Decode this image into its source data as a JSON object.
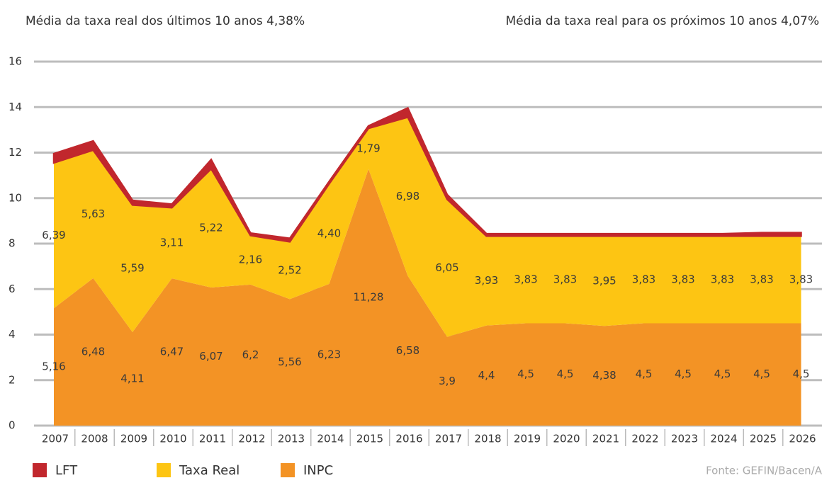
{
  "chart_data": {
    "type": "stacked_area",
    "title": "Média da taxa real dos últimos 10 anos 4,38%",
    "subtitle": "Média da taxa real para os próximos 10 anos 4,07%",
    "source": "Fonte: GEFIN/Bacen/A",
    "categories": [
      "2007",
      "2008",
      "2009",
      "2010",
      "2011",
      "2012",
      "2013",
      "2014",
      "2015",
      "2016",
      "2017",
      "2018",
      "2019",
      "2020",
      "2021",
      "2022",
      "2023",
      "2024",
      "2025",
      "2026"
    ],
    "series": [
      {
        "name": "INPC",
        "color": "#f39325",
        "values": [
          5.16,
          6.48,
          4.11,
          6.47,
          6.07,
          6.2,
          5.56,
          6.23,
          11.28,
          6.58,
          3.9,
          4.4,
          4.5,
          4.5,
          4.38,
          4.5,
          4.5,
          4.5,
          4.5,
          4.5
        ],
        "value_labels": [
          "5,16",
          "6,48",
          "4,11",
          "6,47",
          "6,07",
          "6,2",
          "5,56",
          "6,23",
          "11,28",
          "6,58",
          "3,9",
          "4,4",
          "4,5",
          "4,5",
          "4,38",
          "4,5",
          "4,5",
          "4,5",
          "4,5",
          "4,5"
        ]
      },
      {
        "name": "Taxa Real",
        "color": "#fdc513",
        "values": [
          6.39,
          5.63,
          5.59,
          3.11,
          5.22,
          2.16,
          2.52,
          4.4,
          1.79,
          6.98,
          6.05,
          3.93,
          3.83,
          3.83,
          3.95,
          3.83,
          3.83,
          3.83,
          3.83,
          3.83
        ],
        "value_labels": [
          "6,39",
          "5,63",
          "5,59",
          "3,11",
          "5,22",
          "2,16",
          "2,52",
          "4,40",
          "1,79",
          "6,98",
          "6,05",
          "3,93",
          "3,83",
          "3,83",
          "3,95",
          "3,83",
          "3,83",
          "3,83",
          "3,83",
          "3,83"
        ]
      },
      {
        "name": "LFT",
        "color": "#c1272d",
        "values": [
          0.4,
          0.4,
          0.2,
          0.15,
          0.4,
          0.1,
          0.15,
          0.1,
          0.1,
          0.4,
          0.2,
          0.1,
          0.1,
          0.1,
          0.1,
          0.1,
          0.1,
          0.1,
          0.15,
          0.15
        ]
      }
    ],
    "ylim": [
      0,
      16
    ],
    "yticks": [
      0,
      2,
      4,
      6,
      8,
      10,
      12,
      14,
      16
    ],
    "grid": true
  }
}
